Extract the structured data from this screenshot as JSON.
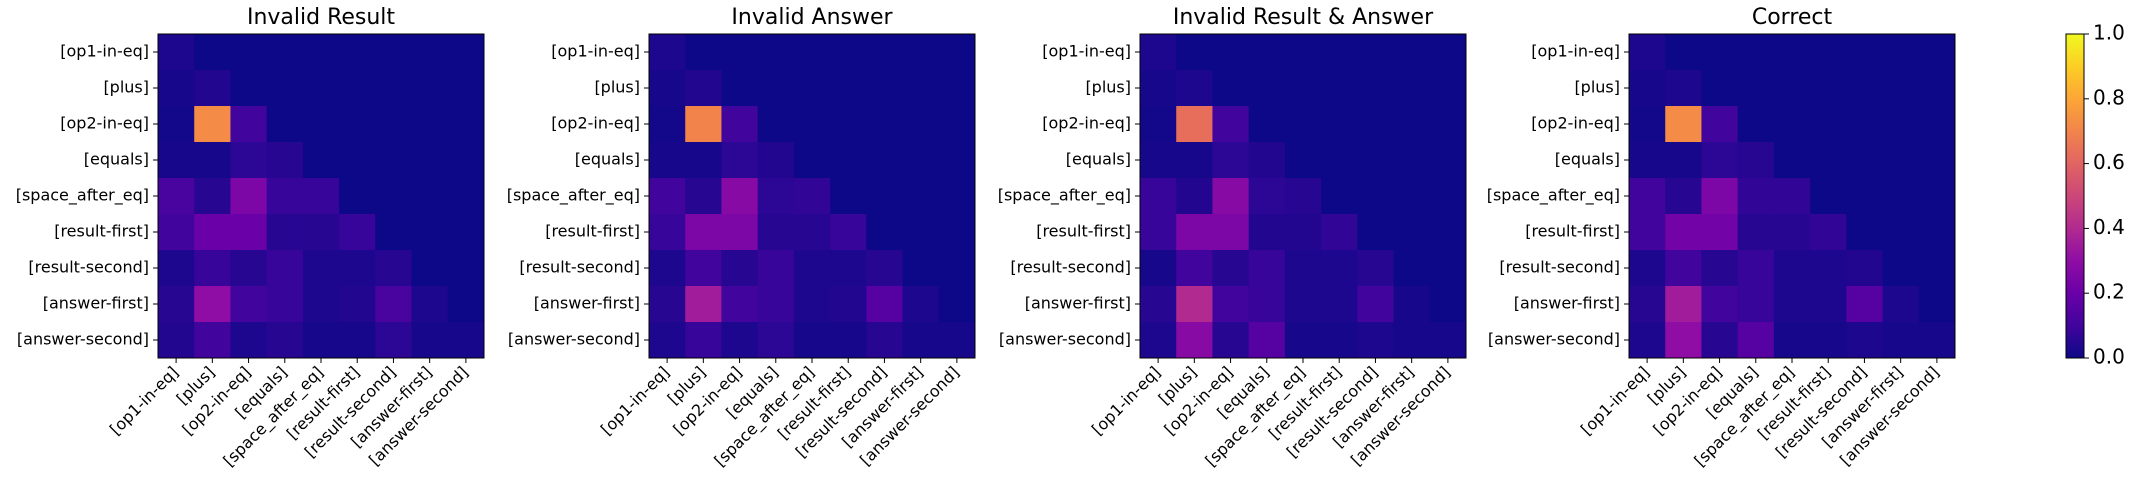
{
  "chart_data": [
    {
      "type": "heatmap",
      "title": "Invalid Result",
      "x": [
        "[op1-in-eq]",
        "[plus]",
        "[op2-in-eq]",
        "[equals]",
        "[space_after_eq]",
        "[result-first]",
        "[result-second]",
        "[answer-first]",
        "[answer-second]"
      ],
      "y": [
        "[op1-in-eq]",
        "[plus]",
        "[op2-in-eq]",
        "[equals]",
        "[space_after_eq]",
        "[result-first]",
        "[result-second]",
        "[answer-first]",
        "[answer-second]"
      ],
      "values": [
        [
          0.03,
          0,
          0,
          0,
          0,
          0,
          0,
          0,
          0
        ],
        [
          0.02,
          0.04,
          0,
          0,
          0,
          0,
          0,
          0,
          0
        ],
        [
          0.01,
          0.72,
          0.1,
          0,
          0,
          0,
          0,
          0,
          0
        ],
        [
          0.02,
          0.02,
          0.06,
          0.05,
          0,
          0,
          0,
          0,
          0
        ],
        [
          0.12,
          0.05,
          0.25,
          0.08,
          0.08,
          0,
          0,
          0,
          0
        ],
        [
          0.1,
          0.2,
          0.2,
          0.05,
          0.05,
          0.08,
          0,
          0,
          0
        ],
        [
          0.03,
          0.08,
          0.05,
          0.08,
          0.03,
          0.03,
          0.05,
          0,
          0
        ],
        [
          0.05,
          0.3,
          0.1,
          0.08,
          0.03,
          0.04,
          0.12,
          0.03,
          0
        ],
        [
          0.04,
          0.1,
          0.03,
          0.05,
          0.02,
          0.02,
          0.06,
          0.02,
          0.02
        ]
      ]
    },
    {
      "type": "heatmap",
      "title": "Invalid Answer",
      "x": [
        "[op1-in-eq]",
        "[plus]",
        "[op2-in-eq]",
        "[equals]",
        "[space_after_eq]",
        "[result-first]",
        "[result-second]",
        "[answer-first]",
        "[answer-second]"
      ],
      "y": [
        "[op1-in-eq]",
        "[plus]",
        "[op2-in-eq]",
        "[equals]",
        "[space_after_eq]",
        "[result-first]",
        "[result-second]",
        "[answer-first]",
        "[answer-second]"
      ],
      "values": [
        [
          0.03,
          0,
          0,
          0,
          0,
          0,
          0,
          0,
          0
        ],
        [
          0.02,
          0.04,
          0,
          0,
          0,
          0,
          0,
          0,
          0
        ],
        [
          0.01,
          0.7,
          0.1,
          0,
          0,
          0,
          0,
          0,
          0
        ],
        [
          0.02,
          0.02,
          0.06,
          0.04,
          0,
          0,
          0,
          0,
          0
        ],
        [
          0.1,
          0.05,
          0.28,
          0.06,
          0.07,
          0,
          0,
          0,
          0
        ],
        [
          0.08,
          0.25,
          0.25,
          0.05,
          0.05,
          0.08,
          0,
          0,
          0
        ],
        [
          0.03,
          0.1,
          0.05,
          0.08,
          0.03,
          0.03,
          0.05,
          0,
          0
        ],
        [
          0.05,
          0.35,
          0.1,
          0.08,
          0.03,
          0.04,
          0.15,
          0.03,
          0
        ],
        [
          0.03,
          0.08,
          0.03,
          0.06,
          0.02,
          0.02,
          0.05,
          0.02,
          0.02
        ]
      ]
    },
    {
      "type": "heatmap",
      "title": "Invalid Result & Answer",
      "x": [
        "[op1-in-eq]",
        "[plus]",
        "[op2-in-eq]",
        "[equals]",
        "[space_after_eq]",
        "[result-first]",
        "[result-second]",
        "[answer-first]",
        "[answer-second]"
      ],
      "y": [
        "[op1-in-eq]",
        "[plus]",
        "[op2-in-eq]",
        "[equals]",
        "[space_after_eq]",
        "[result-first]",
        "[result-second]",
        "[answer-first]",
        "[answer-second]"
      ],
      "values": [
        [
          0.03,
          0,
          0,
          0,
          0,
          0,
          0,
          0,
          0
        ],
        [
          0.02,
          0.03,
          0,
          0,
          0,
          0,
          0,
          0,
          0
        ],
        [
          0.01,
          0.63,
          0.1,
          0,
          0,
          0,
          0,
          0,
          0
        ],
        [
          0.02,
          0.02,
          0.06,
          0.04,
          0,
          0,
          0,
          0,
          0
        ],
        [
          0.08,
          0.04,
          0.28,
          0.06,
          0.05,
          0,
          0,
          0,
          0
        ],
        [
          0.08,
          0.25,
          0.25,
          0.04,
          0.04,
          0.07,
          0,
          0,
          0
        ],
        [
          0.02,
          0.1,
          0.05,
          0.08,
          0.03,
          0.03,
          0.05,
          0,
          0
        ],
        [
          0.05,
          0.4,
          0.1,
          0.08,
          0.03,
          0.03,
          0.1,
          0.02,
          0
        ],
        [
          0.03,
          0.28,
          0.05,
          0.15,
          0.02,
          0.02,
          0.03,
          0.02,
          0.02
        ]
      ]
    },
    {
      "type": "heatmap",
      "title": "Correct",
      "x": [
        "[op1-in-eq]",
        "[plus]",
        "[op2-in-eq]",
        "[equals]",
        "[space_after_eq]",
        "[result-first]",
        "[result-second]",
        "[answer-first]",
        "[answer-second]"
      ],
      "y": [
        "[op1-in-eq]",
        "[plus]",
        "[op2-in-eq]",
        "[equals]",
        "[space_after_eq]",
        "[result-first]",
        "[result-second]",
        "[answer-first]",
        "[answer-second]"
      ],
      "values": [
        [
          0.03,
          0,
          0,
          0,
          0,
          0,
          0,
          0,
          0
        ],
        [
          0.02,
          0.03,
          0,
          0,
          0,
          0,
          0,
          0,
          0
        ],
        [
          0.01,
          0.72,
          0.1,
          0,
          0,
          0,
          0,
          0,
          0
        ],
        [
          0.02,
          0.02,
          0.06,
          0.05,
          0,
          0,
          0,
          0,
          0
        ],
        [
          0.1,
          0.05,
          0.25,
          0.07,
          0.07,
          0,
          0,
          0,
          0
        ],
        [
          0.1,
          0.22,
          0.22,
          0.05,
          0.05,
          0.07,
          0,
          0,
          0
        ],
        [
          0.03,
          0.1,
          0.05,
          0.08,
          0.03,
          0.03,
          0.04,
          0,
          0
        ],
        [
          0.05,
          0.35,
          0.1,
          0.08,
          0.03,
          0.03,
          0.15,
          0.03,
          0
        ],
        [
          0.03,
          0.3,
          0.05,
          0.15,
          0.02,
          0.02,
          0.03,
          0.02,
          0.02
        ]
      ]
    }
  ],
  "colorbar": {
    "colormap": "plasma",
    "lim": [
      0,
      1
    ],
    "ticks": [
      {
        "value": 0,
        "label": "0.0"
      },
      {
        "value": 0.2,
        "label": "0.2"
      },
      {
        "value": 0.4,
        "label": "0.4"
      },
      {
        "value": 0.6,
        "label": "0.6"
      },
      {
        "value": 0.8,
        "label": "0.8"
      },
      {
        "value": 1,
        "label": "1.0"
      }
    ]
  }
}
